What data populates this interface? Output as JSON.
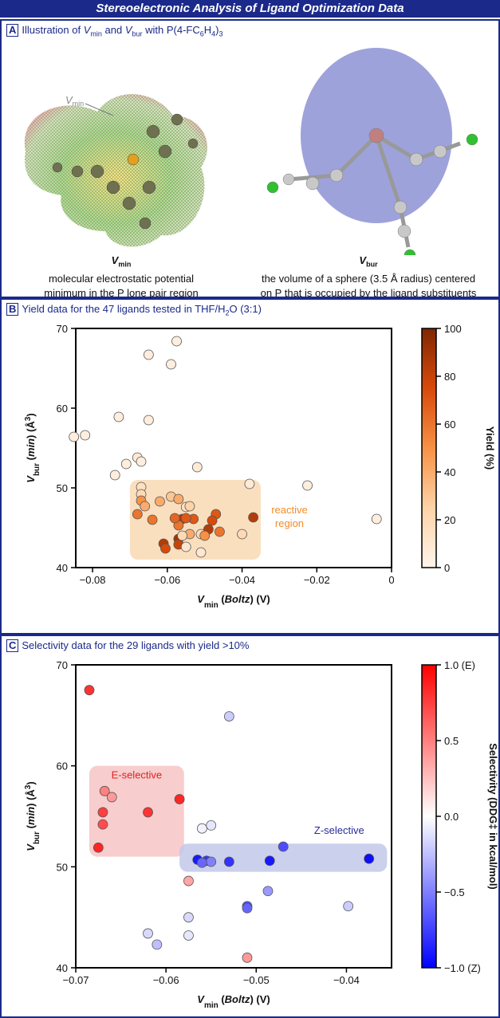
{
  "title": "Stereoelectronic Analysis of Ligand Optimization Data",
  "panel_a": {
    "letter": "A",
    "heading": [
      "Illustration of ",
      "V",
      "min",
      " and ",
      "V",
      "bur",
      " with P(4-FC",
      "6",
      "H",
      "4",
      ")",
      "3"
    ],
    "pointer_label": [
      "V",
      "min"
    ],
    "left_caption": {
      "symbol": [
        "V",
        "min"
      ],
      "lines": [
        "molecular electrostatic potential",
        "minimum in the P lone pair region"
      ]
    },
    "right_caption": {
      "symbol": [
        "V",
        "bur"
      ],
      "lines": [
        "the volume of a sphere (3.5 Å radius) centered",
        "on P that is occupied by the ligand substituents"
      ]
    }
  },
  "chart_data": [
    {
      "type": "scatter",
      "letter": "B",
      "heading": [
        "Yield data for the 47 ligands tested in THF/H",
        "2",
        "O (3:1)"
      ],
      "xlabel": [
        "V",
        "min",
        " (",
        "Boltz",
        ") (V)"
      ],
      "ylabel": [
        "V",
        "bur",
        " (",
        "min",
        ") (Å",
        "3",
        ")"
      ],
      "xlim": [
        -0.0845,
        0
      ],
      "xticks": [
        {
          "value": -0.08,
          "label": "−0.08"
        },
        {
          "value": -0.06,
          "label": "−0.06"
        },
        {
          "value": -0.04,
          "label": "−0.04"
        },
        {
          "value": -0.02,
          "label": "−0.02"
        },
        0
      ],
      "ylim": [
        40,
        70
      ],
      "yticks": [
        40,
        50,
        60,
        70
      ],
      "x": [
        -0.085,
        -0.082,
        -0.073,
        -0.074,
        -0.071,
        -0.068,
        -0.067,
        -0.065,
        -0.065,
        -0.0575,
        -0.059,
        -0.052,
        -0.038,
        -0.0225,
        -0.004,
        -0.067,
        -0.067,
        -0.067,
        -0.066,
        -0.068,
        -0.062,
        -0.059,
        -0.057,
        -0.055,
        -0.054,
        -0.053,
        -0.056,
        -0.055,
        -0.057,
        -0.058,
        -0.047,
        -0.048,
        -0.049,
        -0.051,
        -0.05,
        -0.054,
        -0.04,
        -0.037,
        -0.061,
        -0.0605,
        -0.057,
        -0.057,
        -0.055,
        -0.051,
        -0.064,
        -0.056,
        -0.046
      ],
      "y": [
        56.4,
        56.6,
        58.9,
        51.6,
        53,
        53.8,
        53.3,
        66.7,
        58.5,
        68.4,
        65.5,
        52.6,
        50.5,
        50.3,
        46.1,
        50.1,
        49.2,
        48.4,
        47.7,
        46.7,
        48.3,
        48.9,
        48.6,
        47.6,
        47.7,
        46.1,
        46.1,
        46.2,
        45.3,
        46.2,
        46.7,
        45.9,
        44.8,
        44.2,
        44,
        44.2,
        44.2,
        46.3,
        43,
        42.4,
        43.6,
        42.9,
        42.6,
        41.9,
        46,
        44,
        44.5
      ],
      "color_values": [
        5,
        5,
        5,
        5,
        5,
        8,
        5,
        5,
        5,
        5,
        5,
        8,
        8,
        5,
        5,
        15,
        20,
        50,
        40,
        60,
        40,
        30,
        40,
        15,
        25,
        70,
        85,
        70,
        60,
        65,
        70,
        75,
        85,
        20,
        50,
        40,
        20,
        85,
        85,
        75,
        90,
        80,
        10,
        10,
        60,
        20,
        60
      ],
      "colorbar": {
        "label": "Yield (%)",
        "clim": [
          0,
          100
        ],
        "ticks": [
          0,
          20,
          40,
          60,
          80,
          100
        ],
        "colors": [
          "#fff5eb",
          "#fdd3a7",
          "#f79145",
          "#d84a0a",
          "#7f2704"
        ]
      },
      "annotations": [
        {
          "label_lines": [
            "reactive",
            "region"
          ],
          "xrange": [
            -0.07,
            -0.035
          ],
          "yrange": [
            41,
            51
          ],
          "color": "#f28c28",
          "fill": "#f9d9b4"
        }
      ]
    },
    {
      "type": "scatter",
      "letter": "C",
      "heading": [
        "Selectivity data for the 29 ligands with yield >10%"
      ],
      "xlabel": [
        "V",
        "min",
        " (",
        "Boltz",
        ") (V)"
      ],
      "ylabel": [
        "V",
        "bur",
        " (",
        "min",
        ") (Å",
        "3",
        ")"
      ],
      "xlim": [
        -0.07,
        -0.035
      ],
      "xticks": [
        {
          "value": -0.07,
          "label": "−0.07"
        },
        {
          "value": -0.06,
          "label": "−0.06"
        },
        {
          "value": -0.05,
          "label": "−0.05"
        },
        {
          "value": -0.04,
          "label": "−0.04"
        }
      ],
      "ylim": [
        40,
        70
      ],
      "yticks": [
        40,
        50,
        60,
        70
      ],
      "x": [
        -0.0685,
        -0.0675,
        -0.067,
        -0.067,
        -0.0668,
        -0.066,
        -0.062,
        -0.0585,
        -0.062,
        -0.061,
        -0.0575,
        -0.0575,
        -0.0575,
        -0.056,
        -0.055,
        -0.0555,
        -0.0565,
        -0.055,
        -0.056,
        -0.053,
        -0.053,
        -0.051,
        -0.051,
        -0.051,
        -0.0487,
        -0.0485,
        -0.047,
        -0.0375,
        -0.0398
      ],
      "y": [
        67.5,
        51.9,
        55.4,
        54.2,
        57.5,
        56.9,
        55.4,
        56.7,
        43.4,
        42.3,
        48.6,
        45,
        43.2,
        53.8,
        54.1,
        50.6,
        50.7,
        50.5,
        50.4,
        50.5,
        64.9,
        46.1,
        45.9,
        41,
        47.6,
        50.6,
        52,
        50.8,
        46.1
      ],
      "color_values": [
        0.8,
        0.85,
        0.75,
        0.7,
        0.5,
        0.4,
        0.8,
        0.85,
        -0.15,
        -0.25,
        0.35,
        -0.15,
        -0.1,
        -0.05,
        -0.1,
        -0.8,
        -0.9,
        -0.5,
        -0.6,
        -0.8,
        -0.2,
        -0.7,
        -0.6,
        0.4,
        -0.4,
        -0.9,
        -0.7,
        -0.95,
        -0.2
      ],
      "colorbar": {
        "label": "Selectivity (DDG‡ in kcal/mol)",
        "clim": [
          -1,
          1
        ],
        "ticks": [
          {
            "value": -1,
            "label": "−1.0 (Z)"
          },
          {
            "value": -0.5,
            "label": "−0.5"
          },
          {
            "value": 0,
            "label": "0.0"
          },
          {
            "value": 0.5,
            "label": "0.5"
          },
          {
            "value": 1,
            "label": "1.0 (E)"
          }
        ],
        "colors": [
          "#0000ff",
          "#ffffff",
          "#ff0000"
        ]
      },
      "annotations": [
        {
          "label_lines": [
            "E-selective"
          ],
          "xrange": [
            -0.0685,
            -0.058
          ],
          "yrange": [
            51,
            60
          ],
          "color": "#e02020",
          "fill": "#f7c4c4"
        },
        {
          "label_lines": [
            "Z-selective"
          ],
          "xrange": [
            -0.0585,
            -0.0355
          ],
          "yrange": [
            49.5,
            52.3
          ],
          "color": "#2a2a9a",
          "fill": "#c2c8ea"
        }
      ]
    }
  ]
}
